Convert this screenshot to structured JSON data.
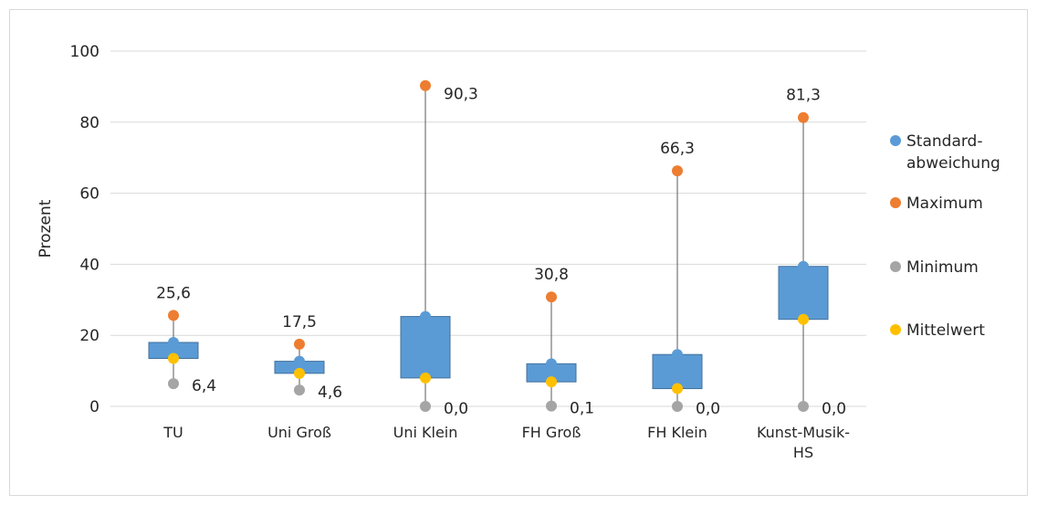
{
  "chart_data": {
    "type": "box",
    "ylabel": "Prozent",
    "ylim": [
      0,
      100
    ],
    "yticks": [
      0,
      20,
      40,
      60,
      80,
      100
    ],
    "grid": true,
    "legend_position": "right",
    "categories": [
      "TU",
      "Uni Groß",
      "Uni Klein",
      "FH Groß",
      "FH Klein",
      "Kunst-Musik-HS"
    ],
    "box_range": [
      {
        "low": 13.5,
        "high": 18.0
      },
      {
        "low": 9.3,
        "high": 12.7
      },
      {
        "low": 8.0,
        "high": 25.3
      },
      {
        "low": 6.9,
        "high": 12.0
      },
      {
        "low": 5.0,
        "high": 14.6
      },
      {
        "low": 24.5,
        "high": 39.4
      }
    ],
    "series": [
      {
        "name": "Standard-abweichung",
        "legend_lines": [
          "Standard-",
          "abweichung"
        ],
        "color": "#5b9bd5",
        "values": [
          18.0,
          12.7,
          25.3,
          12.0,
          14.6,
          39.4
        ]
      },
      {
        "name": "Maximum",
        "legend_lines": [
          "Maximum"
        ],
        "color": "#ed7d31",
        "values": [
          25.6,
          17.5,
          90.3,
          30.8,
          66.3,
          81.3
        ]
      },
      {
        "name": "Minimum",
        "legend_lines": [
          "Minimum"
        ],
        "color": "#a5a5a5",
        "values": [
          6.4,
          4.6,
          0.0,
          0.1,
          0.0,
          0.0
        ]
      },
      {
        "name": "Mittelwert",
        "legend_lines": [
          "Mittelwert"
        ],
        "color": "#ffc000",
        "values": [
          13.5,
          9.3,
          8.0,
          6.9,
          5.0,
          24.5
        ]
      }
    ],
    "max_labels": [
      "25,6",
      "17,5",
      "90,3",
      "30,8",
      "66,3",
      "81,3"
    ],
    "min_labels": [
      "6,4",
      "4,6",
      "0,0",
      "0,1",
      "0,0",
      "0,0"
    ],
    "colors": {
      "box_fill": "#5b9bd5",
      "box_stroke": "#41719c",
      "whisker": "#595959",
      "grid": "#d9d9d9"
    }
  }
}
